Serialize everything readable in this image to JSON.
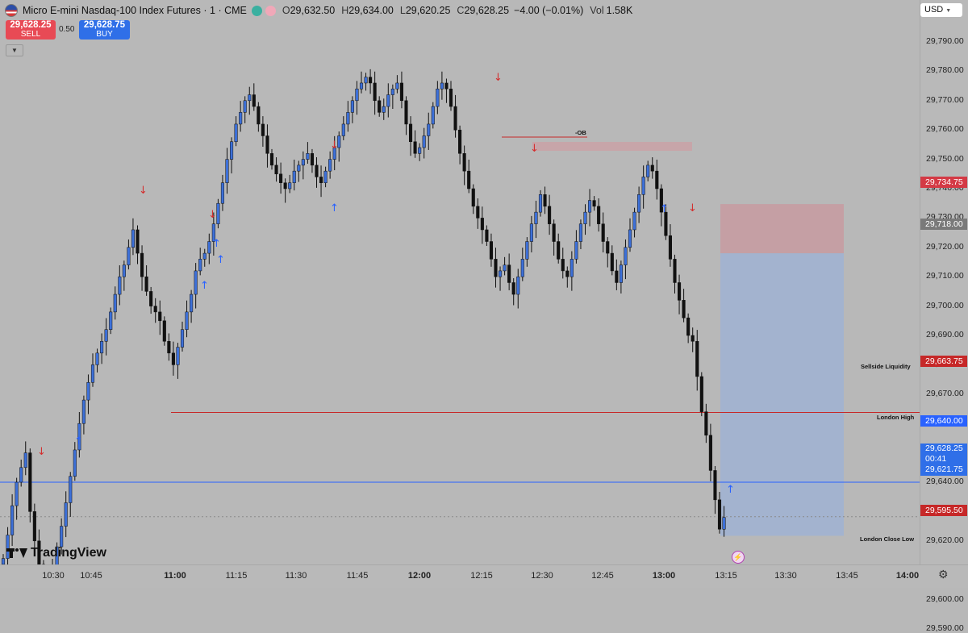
{
  "header": {
    "symbol_title": "Micro E-mini Nasdaq-100 Index Futures · 1 · CME",
    "open_key": "O",
    "open": "29,632.50",
    "high_key": "H",
    "high": "29,634.00",
    "low_key": "L",
    "low": "29,620.25",
    "close_key": "C",
    "close": "29,628.25",
    "change": "−4.00 (−0.01%)",
    "vol_key": "Vol",
    "vol": "1.58K"
  },
  "trade": {
    "sell_price": "29,628.25",
    "sell_label": "SELL",
    "spread": "0.50",
    "buy_price": "29,628.75",
    "buy_label": "BUY"
  },
  "currency": "USD",
  "price_ticks": [
    "29,790.00",
    "29,780.00",
    "29,770.00",
    "29,760.00",
    "29,750.00",
    "29,740.00",
    "29,730.00",
    "29,720.00",
    "29,710.00",
    "29,700.00",
    "29,690.00",
    "29,680.00",
    "29,670.00",
    "29,660.00",
    "29,650.00",
    "29,640.00",
    "29,630.00",
    "29,620.00",
    "29,610.00",
    "29,600.00",
    "29,590.00"
  ],
  "price_labels": {
    "stop": "29,734.75",
    "entry": "29,718.00",
    "sellside": "29,663.75",
    "london_high": "29,640.00",
    "current": "29,628.25",
    "countdown": "00:41",
    "target": "29,621.75",
    "london_low": "29,595.50"
  },
  "time_ticks": [
    {
      "t": "10:30",
      "bold": false
    },
    {
      "t": "10:45",
      "bold": false
    },
    {
      "t": "11:00",
      "bold": true
    },
    {
      "t": "11:15",
      "bold": false
    },
    {
      "t": "11:30",
      "bold": false
    },
    {
      "t": "11:45",
      "bold": false
    },
    {
      "t": "12:00",
      "bold": true
    },
    {
      "t": "12:15",
      "bold": false
    },
    {
      "t": "12:30",
      "bold": false
    },
    {
      "t": "12:45",
      "bold": false
    },
    {
      "t": "13:00",
      "bold": true
    },
    {
      "t": "13:15",
      "bold": false
    },
    {
      "t": "13:30",
      "bold": false
    },
    {
      "t": "13:45",
      "bold": false
    },
    {
      "t": "14:00",
      "bold": true
    }
  ],
  "annotations": {
    "ob": "-OB",
    "sellside": "Sellside Liquidity",
    "london_high": "London High",
    "london_low": "London Close Low"
  },
  "logo": "TradingView",
  "colors": {
    "bull": "#3d70d8",
    "bear": "#111111",
    "level_red": "#c62828",
    "level_blue": "#2962ff",
    "stop_zone": "#c79aa0",
    "target_zone": "#9fb1d2",
    "ob_zone": "#c9a1a6"
  }
}
